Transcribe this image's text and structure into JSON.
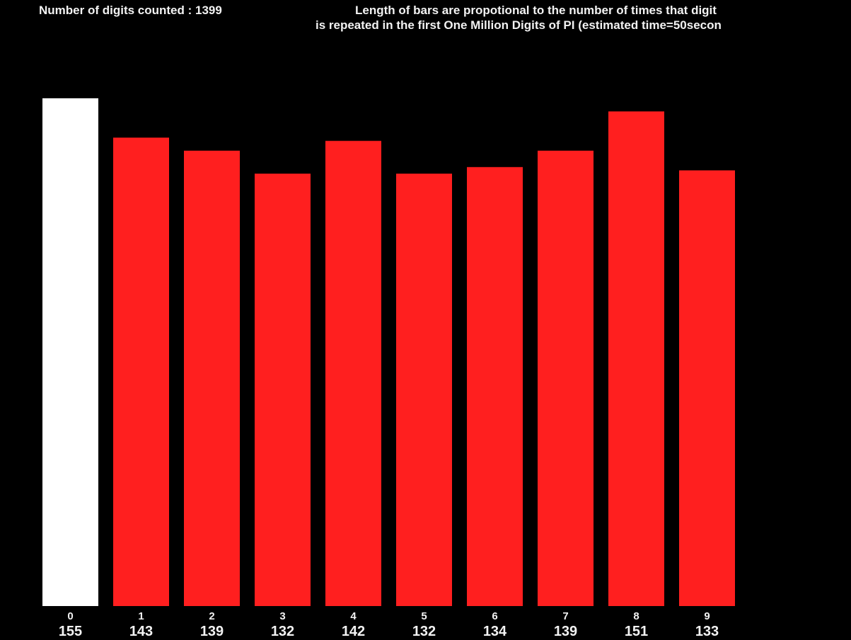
{
  "header": {
    "count_text": "Number of digits counted : 1399",
    "description_line1": "Length of bars are propotional to the number of times that digit",
    "description_line2": "is repeated in the first One Million Digits of PI (estimated time=50secon"
  },
  "chart_data": {
    "type": "bar",
    "categories": [
      "0",
      "1",
      "2",
      "3",
      "4",
      "5",
      "6",
      "7",
      "8",
      "9"
    ],
    "values": [
      155,
      143,
      139,
      132,
      142,
      132,
      134,
      139,
      151,
      133
    ],
    "highlighted_index": 0,
    "ylim": [
      0,
      155
    ],
    "grid": false,
    "colors": {
      "bar": "#ff1f1f",
      "highlight": "#ffffff",
      "background": "#000000",
      "text": "#f2f2f2"
    }
  }
}
